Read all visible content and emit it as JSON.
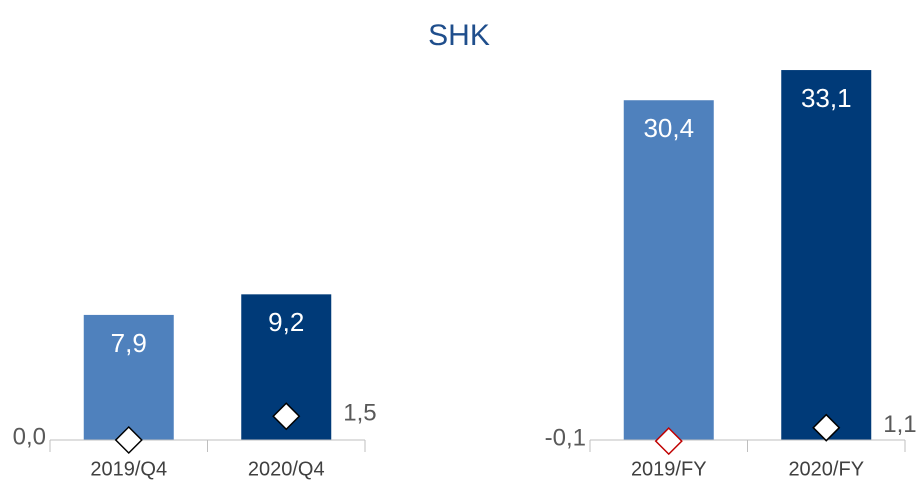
{
  "title": "SHK",
  "chart_data": [
    {
      "type": "bar",
      "categories": [
        "2019/Q4",
        "2020/Q4"
      ],
      "values": [
        7.9,
        9.2
      ],
      "value_labels": [
        "7,9",
        "9,2"
      ],
      "colors": [
        "#4f81bd",
        "#003a78"
      ],
      "markers": {
        "values": [
          0.0,
          1.5
        ],
        "value_labels": [
          "0,0",
          "1,5"
        ],
        "edge_colors": [
          "#000000",
          "#000000"
        ]
      },
      "ylim": [
        0,
        24
      ]
    },
    {
      "type": "bar",
      "categories": [
        "2019/FY",
        "2020/FY"
      ],
      "values": [
        30.4,
        33.1
      ],
      "value_labels": [
        "30,4",
        "33,1"
      ],
      "colors": [
        "#4f81bd",
        "#003a78"
      ],
      "markers": {
        "values": [
          -0.1,
          1.1
        ],
        "value_labels": [
          "-0,1",
          "1,1"
        ],
        "edge_colors": [
          "#c00000",
          "#000000"
        ]
      },
      "ylim": [
        0,
        34
      ]
    }
  ]
}
